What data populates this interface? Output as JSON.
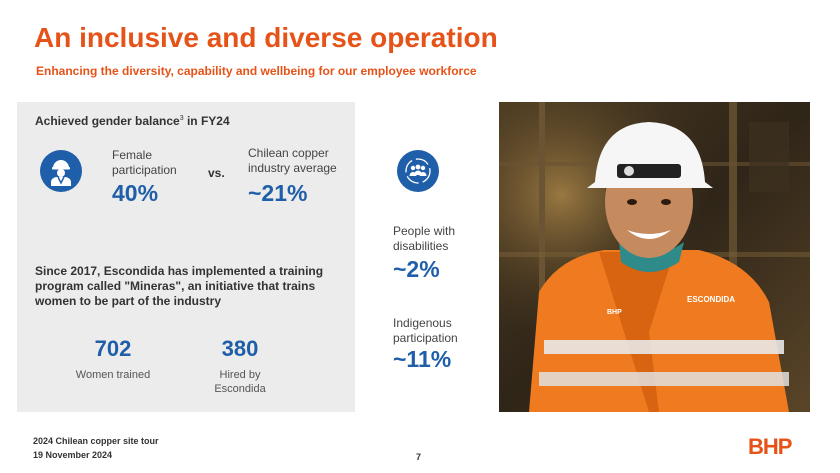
{
  "header": {
    "title": "An inclusive and diverse operation",
    "subtitle": "Enhancing the diversity, capability and wellbeing for our employee workforce"
  },
  "gender": {
    "heading": "Achieved gender balance",
    "heading_sup": "3",
    "heading_suffix": " in FY24",
    "female_label_1": "Female",
    "female_label_2": "participation",
    "female_value": "40%",
    "vs": "vs.",
    "industry_label_1": "Chilean copper",
    "industry_label_2": "industry average",
    "industry_value": "~21%"
  },
  "mineras": {
    "text": "Since 2017, Escondida has implemented a training program called \"Mineras\", an initiative that trains women to be part of the industry",
    "trained_value": "702",
    "trained_label": "Women trained",
    "hired_value": "380",
    "hired_label_1": "Hired by",
    "hired_label_2": "Escondida"
  },
  "stats": {
    "disab_label_1": "People with",
    "disab_label_2": "disabilities",
    "disab_value": "~2%",
    "indig_label_1": "Indigenous",
    "indig_label_2": "participation",
    "indig_value": "~11%"
  },
  "photo": {
    "vest_text_1": "ESCONDIDA",
    "vest_text_2": "BHP"
  },
  "footer": {
    "line1": "2024 Chilean copper site tour",
    "line2": "19 November 2024",
    "page": "7",
    "logo": "BHP"
  },
  "colors": {
    "accent_orange": "#e65319",
    "accent_blue": "#1f5ea8",
    "panel_grey": "#ececec"
  }
}
